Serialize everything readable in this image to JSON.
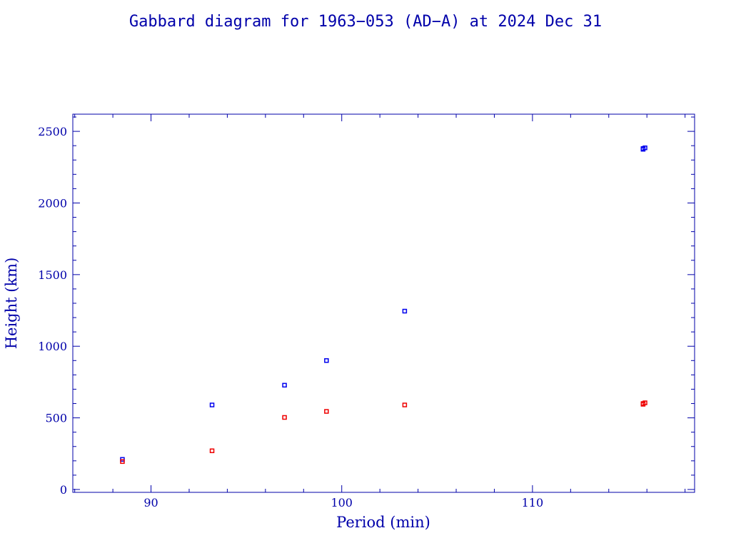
{
  "chart_data": {
    "type": "scatter",
    "title": "Gabbard diagram for 1963−053 (AD−A) at 2024 Dec 31",
    "xlabel": "Period (min)",
    "ylabel": "Height (km)",
    "xlim": [
      85.9,
      118.5
    ],
    "ylim": [
      -20,
      2620
    ],
    "xticks": [
      90,
      100,
      110
    ],
    "xtick_labels": [
      "90",
      "100",
      "110"
    ],
    "yticks": [
      0,
      500,
      1000,
      1500,
      2000,
      2500
    ],
    "ytick_labels": [
      "0",
      "500",
      "1000",
      "1500",
      "2000",
      "2500"
    ],
    "grid": false,
    "series": [
      {
        "color": "#0000ee",
        "points": [
          {
            "x": 88.5,
            "y": 210
          },
          {
            "x": 93.2,
            "y": 590
          },
          {
            "x": 97.0,
            "y": 728
          },
          {
            "x": 99.2,
            "y": 900
          },
          {
            "x": 103.3,
            "y": 1245
          },
          {
            "x": 115.8,
            "y": 2375
          },
          {
            "x": 115.9,
            "y": 2385
          },
          {
            "x": 115.8,
            "y": 2380
          }
        ]
      },
      {
        "color": "#ee0000",
        "points": [
          {
            "x": 88.5,
            "y": 195
          },
          {
            "x": 93.2,
            "y": 270
          },
          {
            "x": 97.0,
            "y": 503
          },
          {
            "x": 99.2,
            "y": 545
          },
          {
            "x": 103.3,
            "y": 590
          },
          {
            "x": 115.8,
            "y": 595
          },
          {
            "x": 115.9,
            "y": 605
          },
          {
            "x": 115.8,
            "y": 600
          }
        ]
      }
    ]
  }
}
